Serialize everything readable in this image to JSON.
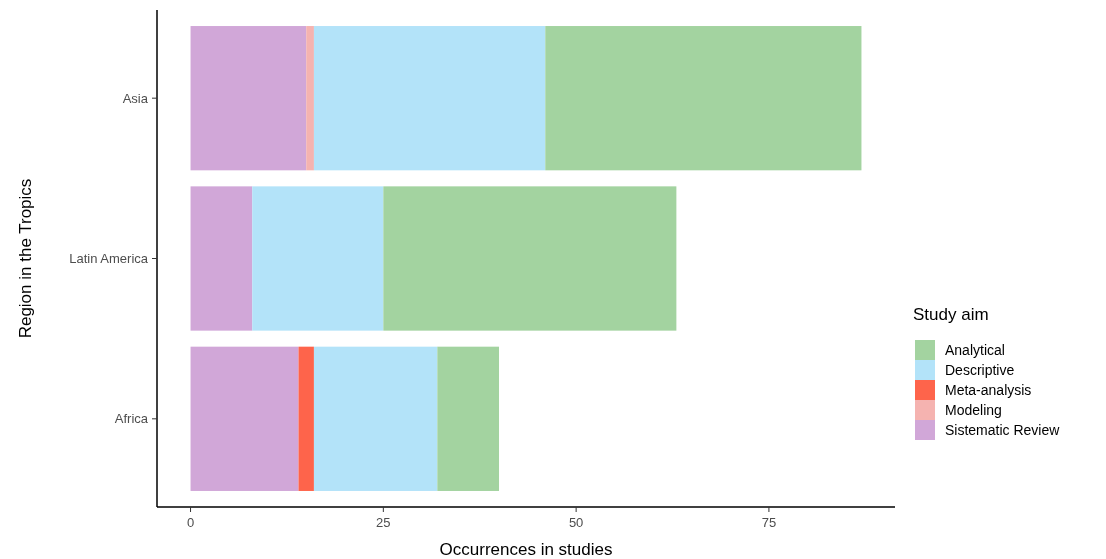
{
  "chart_data": {
    "type": "bar",
    "orientation": "horizontal",
    "stacked": true,
    "xlabel": "Occurrences in studies",
    "ylabel": "Region in the Tropics",
    "legend_title": "Study aim",
    "legend": "right",
    "grid": false,
    "categories": [
      "Asia",
      "Latin America",
      "Africa"
    ],
    "xlim": [
      -4.35,
      91.35
    ],
    "xticks": [
      0,
      25,
      50,
      75
    ],
    "series": [
      {
        "name": "Sistematic Review",
        "color": "#d1a7d8",
        "values": [
          15,
          8,
          14
        ]
      },
      {
        "name": "Modeling",
        "color": "#f5b3b0",
        "values": [
          1,
          0,
          0
        ]
      },
      {
        "name": "Meta-analysis",
        "color": "#fe644b",
        "values": [
          0,
          0,
          2
        ]
      },
      {
        "name": "Descriptive",
        "color": "#b3e3f9",
        "values": [
          30,
          17,
          16
        ]
      },
      {
        "name": "Analytical",
        "color": "#a3d3a0",
        "values": [
          41,
          38,
          8
        ]
      }
    ]
  }
}
